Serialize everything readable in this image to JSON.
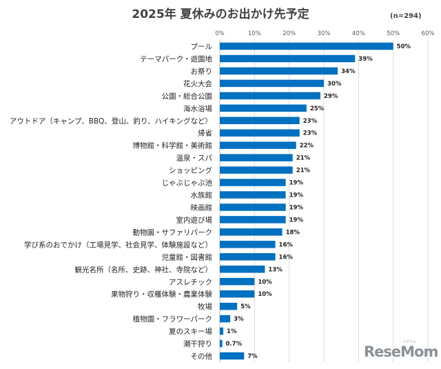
{
  "chart_data": {
    "type": "bar",
    "orientation": "horizontal",
    "title": "2025年 夏休みのお出かけ先予定",
    "sample_note": "(n=294)",
    "xlim": [
      0,
      60
    ],
    "xticks": [
      "0%",
      "10%",
      "20%",
      "30%",
      "40%",
      "50%",
      "60%"
    ],
    "xtick_values": [
      0,
      10,
      20,
      30,
      40,
      50,
      60
    ],
    "grid": true,
    "bar_color": "#0070C0",
    "categories": [
      "プール",
      "テーマパーク・遊園地",
      "お祭り",
      "花火大会",
      "公園・総合公園",
      "海水浴場",
      "アウトドア（キャンプ、BBQ、登山、釣り、ハイキングなど）",
      "帰省",
      "博物館・科学館・美術館",
      "温泉・スパ",
      "ショッピング",
      "じゃぶじゃぶ池",
      "水族館",
      "映画館",
      "室内遊び場",
      "動物園・サファリパーク",
      "学び系のおでかけ（工場見学、社会見学、体験施設など）",
      "児童館・図書館",
      "観光名所（名所、史跡、神社、寺院など）",
      "アスレチック",
      "果物狩り・収穫体験・農業体験",
      "牧場",
      "植物園・フラワーパーク",
      "夏のスキー場",
      "潮干狩り",
      "その他"
    ],
    "values": [
      50,
      39,
      34,
      30,
      29,
      25,
      23,
      23,
      22,
      21,
      21,
      19,
      19,
      19,
      19,
      18,
      16,
      16,
      13,
      10,
      10,
      5,
      3,
      1,
      0.7,
      7
    ],
    "value_labels": [
      "50%",
      "39%",
      "34%",
      "30%",
      "29%",
      "25%",
      "23%",
      "23%",
      "22%",
      "21%",
      "21%",
      "19%",
      "19%",
      "19%",
      "19%",
      "18%",
      "16%",
      "16%",
      "13%",
      "10%",
      "10%",
      "5%",
      "3%",
      "1%",
      "0.7%",
      "7%"
    ]
  },
  "logo": {
    "text": "ReseMom",
    "kana": "リセマム"
  }
}
